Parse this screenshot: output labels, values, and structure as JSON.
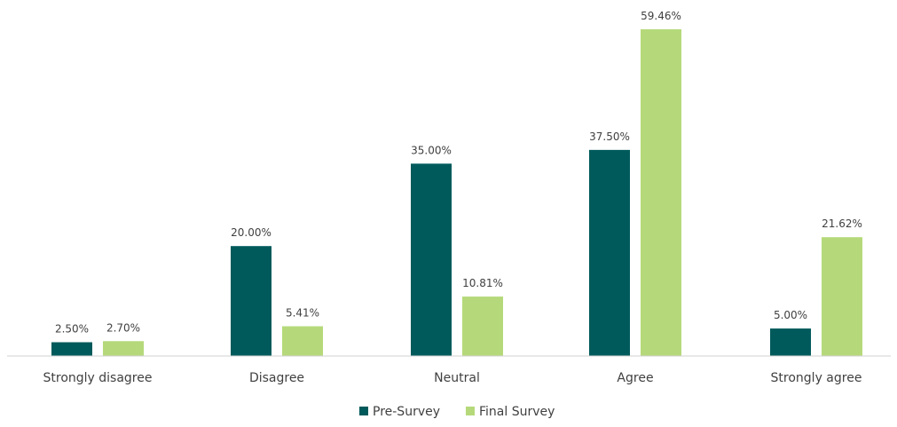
{
  "chart_data": {
    "type": "bar",
    "categories": [
      "Strongly disagree",
      "Disagree",
      "Neutral",
      "Agree",
      "Strongly agree"
    ],
    "series": [
      {
        "name": "Pre-Survey",
        "values": [
          2.5,
          20.0,
          35.0,
          37.5,
          5.0
        ],
        "labels": [
          "2.50%",
          "20.00%",
          "35.00%",
          "37.50%",
          "5.00%"
        ],
        "color": "#005A5B"
      },
      {
        "name": "Final Survey",
        "values": [
          2.7,
          5.41,
          10.81,
          59.46,
          21.62
        ],
        "labels": [
          "2.70%",
          "5.41%",
          "10.81%",
          "59.46%",
          "21.62%"
        ],
        "color": "#B5D97A"
      }
    ],
    "ylim": [
      0,
      60
    ],
    "grid": false,
    "y_axis_visible": false,
    "legend_position": "bottom"
  }
}
